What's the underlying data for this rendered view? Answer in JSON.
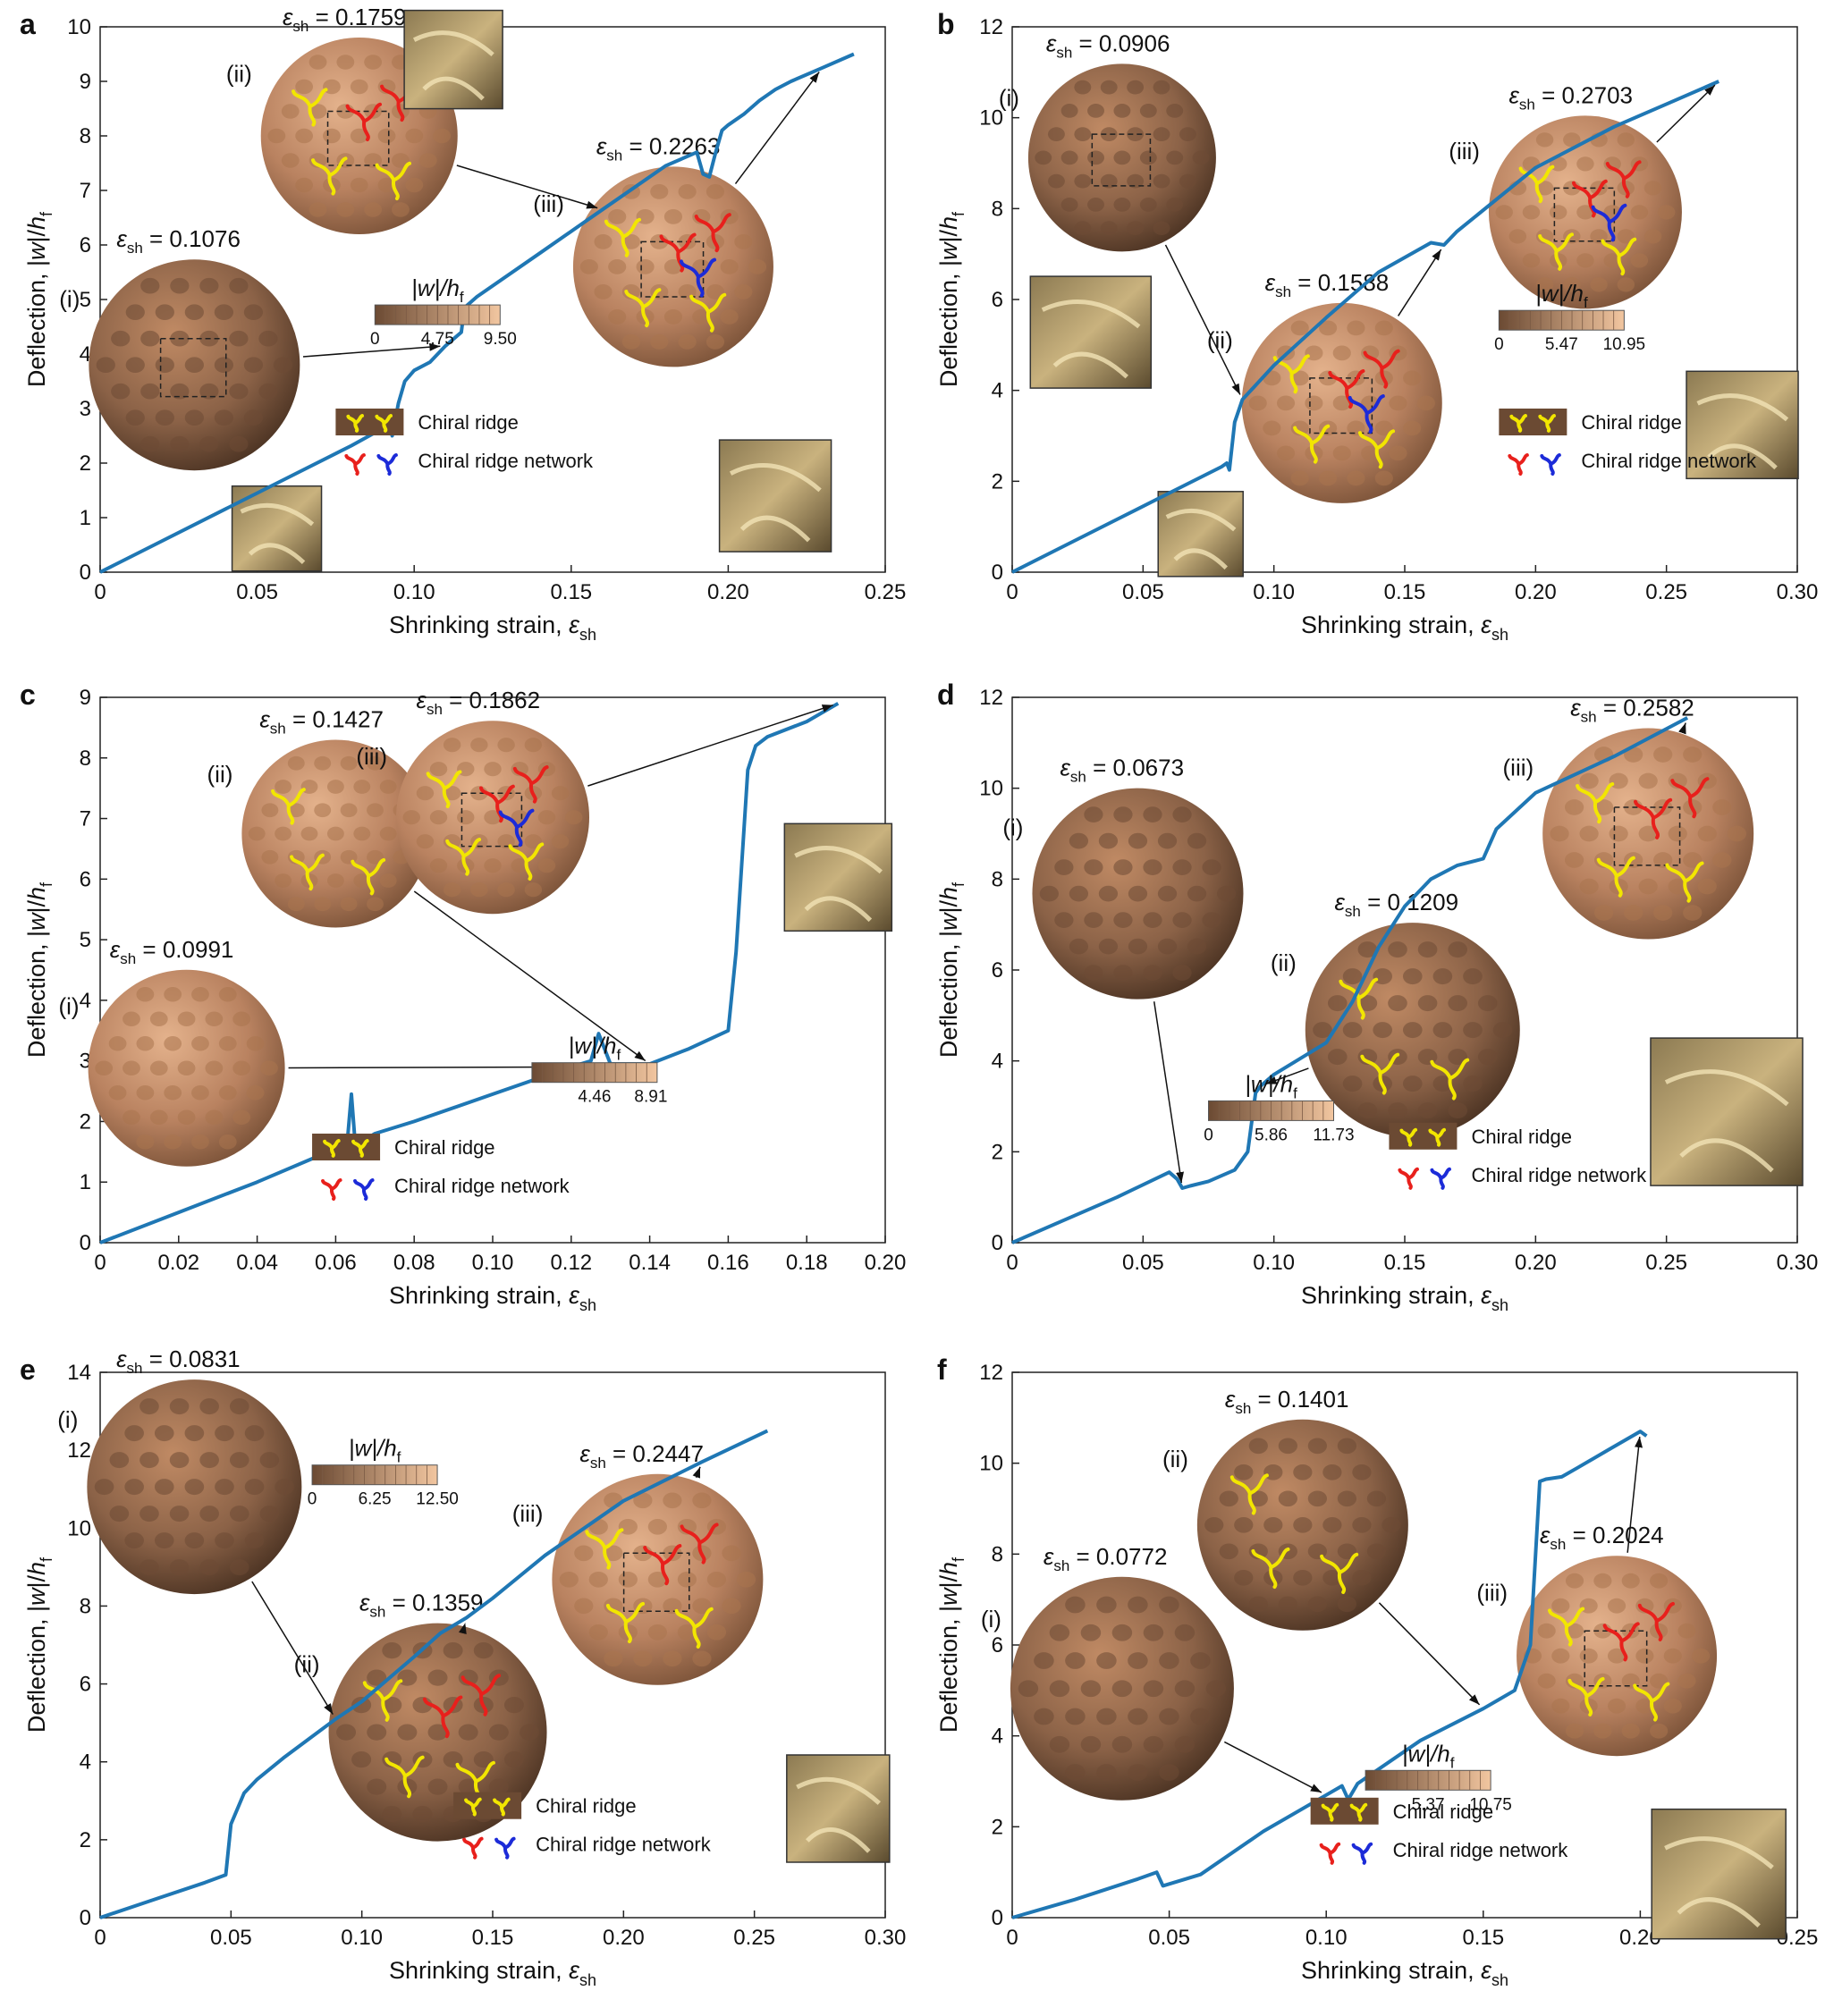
{
  "figure": {
    "ylabel_main": "Deflection, |",
    "ylabel_w": "w",
    "ylabel_mid": "|/",
    "ylabel_h": "h",
    "ylabel_sub": "f",
    "xlabel_main": "Shrinking strain, ",
    "xlabel_eps": "ε",
    "xlabel_sub": "sh",
    "chiral_ridge": "Chiral ridge",
    "chiral_ridge_network": "Chiral ridge network",
    "colorbar_title_w": "|w|/h",
    "colorbar_title_sub": "f"
  },
  "colors": {
    "curve": "#1f77b4",
    "sphere_dark": "#5a3e2b",
    "sphere_light": "#d9a27a",
    "ridge_yellow": "#f2e600",
    "ridge_red": "#e8201c",
    "ridge_blue": "#1c2bd8"
  },
  "chart_data": [
    {
      "type": "line",
      "panel": "a",
      "xlim": [
        0,
        0.25
      ],
      "ylim": [
        0,
        10
      ],
      "xticks": [
        "0",
        "0.05",
        "0.10",
        "0.15",
        "0.20",
        "0.25"
      ],
      "yticks": [
        "0",
        "1",
        "2",
        "3",
        "4",
        "5",
        "6",
        "7",
        "8",
        "9",
        "10"
      ],
      "x": [
        0,
        0.02,
        0.04,
        0.06,
        0.08,
        0.092,
        0.093,
        0.095,
        0.097,
        0.1,
        0.105,
        0.11,
        0.115,
        0.116,
        0.117,
        0.12,
        0.14,
        0.16,
        0.18,
        0.19,
        0.192,
        0.194,
        0.196,
        0.198,
        0.2,
        0.205,
        0.21,
        0.215,
        0.22,
        0.23,
        0.24
      ],
      "y": [
        0,
        0.58,
        1.16,
        1.74,
        2.32,
        2.7,
        2.5,
        3.1,
        3.5,
        3.7,
        3.85,
        4.15,
        4.4,
        4.85,
        4.9,
        5.05,
        5.85,
        6.65,
        7.45,
        7.7,
        7.3,
        7.25,
        7.7,
        8.1,
        8.2,
        8.4,
        8.65,
        8.85,
        9.0,
        9.25,
        9.5
      ],
      "annotations": [
        {
          "label": "(i)",
          "eps": "0.1076"
        },
        {
          "label": "(ii)",
          "eps": "0.1759"
        },
        {
          "label": "(iii)",
          "eps": "0.2263"
        }
      ],
      "colorbar": {
        "ticks": [
          "0",
          "4.75",
          "9.50"
        ]
      },
      "legend": [
        "Chiral ridge",
        "Chiral ridge network"
      ]
    },
    {
      "type": "line",
      "panel": "b",
      "xlim": [
        0,
        0.3
      ],
      "ylim": [
        0,
        12
      ],
      "xticks": [
        "0",
        "0.05",
        "0.10",
        "0.15",
        "0.20",
        "0.25",
        "0.30"
      ],
      "yticks": [
        "0",
        "2",
        "4",
        "6",
        "8",
        "10",
        "12"
      ],
      "x": [
        0,
        0.02,
        0.04,
        0.06,
        0.08,
        0.082,
        0.083,
        0.085,
        0.088,
        0.092,
        0.1,
        0.12,
        0.14,
        0.16,
        0.165,
        0.17,
        0.2,
        0.23,
        0.25,
        0.27
      ],
      "y": [
        0,
        0.58,
        1.16,
        1.74,
        2.32,
        2.4,
        2.25,
        3.3,
        3.8,
        4.05,
        4.55,
        5.6,
        6.6,
        7.25,
        7.2,
        7.5,
        8.9,
        9.8,
        10.3,
        10.8
      ],
      "annotations": [
        {
          "label": "(i)",
          "eps": "0.0906"
        },
        {
          "label": "(ii)",
          "eps": "0.1588"
        },
        {
          "label": "(iii)",
          "eps": "0.2703"
        }
      ],
      "colorbar": {
        "ticks": [
          "0",
          "5.47",
          "10.95"
        ]
      },
      "legend": [
        "Chiral ridge",
        "Chiral ridge network"
      ]
    },
    {
      "type": "line",
      "panel": "c",
      "xlim": [
        0,
        0.2
      ],
      "ylim": [
        0,
        9
      ],
      "xticks": [
        "0",
        "0.02",
        "0.04",
        "0.06",
        "0.08",
        "0.10",
        "0.12",
        "0.14",
        "0.16",
        "0.18",
        "0.20"
      ],
      "yticks": [
        "0",
        "1",
        "2",
        "3",
        "4",
        "5",
        "6",
        "7",
        "8",
        "9"
      ],
      "x": [
        0,
        0.02,
        0.04,
        0.06,
        0.063,
        0.064,
        0.065,
        0.07,
        0.08,
        0.1,
        0.12,
        0.125,
        0.127,
        0.13,
        0.14,
        0.15,
        0.16,
        0.162,
        0.165,
        0.167,
        0.17,
        0.18,
        0.188
      ],
      "y": [
        0,
        0.5,
        1.0,
        1.55,
        1.7,
        2.45,
        1.6,
        1.8,
        2.0,
        2.45,
        2.9,
        3.0,
        3.45,
        2.95,
        2.95,
        3.2,
        3.5,
        4.8,
        7.8,
        8.2,
        8.35,
        8.6,
        8.9
      ],
      "annotations": [
        {
          "label": "(i)",
          "eps": "0.0991"
        },
        {
          "label": "(ii)",
          "eps": "0.1427"
        },
        {
          "label": "(iii)",
          "eps": "0.1862"
        }
      ],
      "colorbar": {
        "ticks": [
          "4.46",
          "8.91"
        ]
      },
      "legend": [
        "Chiral ridge",
        "Chiral ridge network"
      ]
    },
    {
      "type": "line",
      "panel": "d",
      "xlim": [
        0,
        0.3
      ],
      "ylim": [
        0,
        12
      ],
      "xticks": [
        "0",
        "0.05",
        "0.10",
        "0.15",
        "0.20",
        "0.25",
        "0.30"
      ],
      "yticks": [
        "0",
        "2",
        "4",
        "6",
        "8",
        "10",
        "12"
      ],
      "x": [
        0,
        0.02,
        0.04,
        0.06,
        0.063,
        0.065,
        0.068,
        0.075,
        0.085,
        0.09,
        0.093,
        0.095,
        0.1,
        0.12,
        0.13,
        0.14,
        0.15,
        0.16,
        0.17,
        0.18,
        0.185,
        0.2,
        0.23,
        0.258
      ],
      "y": [
        0,
        0.5,
        1.0,
        1.55,
        1.4,
        1.2,
        1.25,
        1.35,
        1.6,
        2.0,
        3.3,
        3.45,
        3.7,
        4.4,
        5.3,
        6.5,
        7.4,
        8.0,
        8.3,
        8.45,
        9.1,
        9.9,
        10.7,
        11.55
      ],
      "annotations": [
        {
          "label": "(i)",
          "eps": "0.0673"
        },
        {
          "label": "(ii)",
          "eps": "0.1209"
        },
        {
          "label": "(iii)",
          "eps": "0.2582"
        }
      ],
      "colorbar": {
        "ticks": [
          "0",
          "5.86",
          "11.73"
        ]
      },
      "legend": [
        "Chiral ridge",
        "Chiral ridge network"
      ]
    },
    {
      "type": "line",
      "panel": "e",
      "xlim": [
        0,
        0.3
      ],
      "ylim": [
        0,
        14
      ],
      "xticks": [
        "0",
        "0.05",
        "0.10",
        "0.15",
        "0.20",
        "0.25",
        "0.30"
      ],
      "yticks": [
        "0",
        "2",
        "4",
        "6",
        "8",
        "10",
        "12",
        "14"
      ],
      "x": [
        0,
        0.02,
        0.04,
        0.048,
        0.05,
        0.055,
        0.06,
        0.07,
        0.08,
        0.09,
        0.1,
        0.12,
        0.13,
        0.14,
        0.15,
        0.17,
        0.2,
        0.23,
        0.255
      ],
      "y": [
        0,
        0.45,
        0.9,
        1.1,
        2.4,
        3.2,
        3.55,
        4.1,
        4.6,
        5.1,
        5.55,
        6.7,
        7.3,
        7.7,
        8.2,
        9.3,
        10.7,
        11.7,
        12.5
      ],
      "annotations": [
        {
          "label": "(i)",
          "eps": "0.0831"
        },
        {
          "label": "(ii)",
          "eps": "0.1359"
        },
        {
          "label": "(iii)",
          "eps": "0.2447"
        }
      ],
      "colorbar": {
        "ticks": [
          "0",
          "6.25",
          "12.50"
        ]
      },
      "legend": [
        "Chiral ridge",
        "Chiral ridge network"
      ]
    },
    {
      "type": "line",
      "panel": "f",
      "xlim": [
        0,
        0.25
      ],
      "ylim": [
        0,
        12
      ],
      "xticks": [
        "0",
        "0.05",
        "0.10",
        "0.15",
        "0.20",
        "0.25"
      ],
      "yticks": [
        "0",
        "2",
        "4",
        "6",
        "8",
        "10",
        "12"
      ],
      "x": [
        0,
        0.02,
        0.04,
        0.046,
        0.048,
        0.06,
        0.08,
        0.1,
        0.105,
        0.107,
        0.11,
        0.13,
        0.15,
        0.155,
        0.16,
        0.165,
        0.168,
        0.17,
        0.175,
        0.18,
        0.19,
        0.2,
        0.202
      ],
      "y": [
        0,
        0.4,
        0.85,
        1.0,
        0.7,
        0.95,
        1.9,
        2.7,
        2.9,
        2.6,
        2.95,
        3.9,
        4.6,
        4.8,
        5.0,
        6.0,
        9.6,
        9.65,
        9.7,
        9.9,
        10.3,
        10.7,
        10.6
      ],
      "annotations": [
        {
          "label": "(i)",
          "eps": "0.0772"
        },
        {
          "label": "(ii)",
          "eps": "0.1401"
        },
        {
          "label": "(iii)",
          "eps": "0.2024"
        }
      ],
      "colorbar": {
        "ticks": [
          "0",
          "5.37",
          "10.75"
        ]
      },
      "legend": [
        "Chiral ridge",
        "Chiral ridge network"
      ]
    }
  ]
}
